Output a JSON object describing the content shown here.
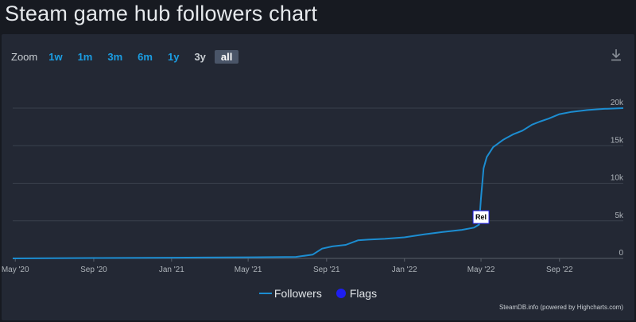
{
  "page": {
    "title": "Steam game hub followers chart"
  },
  "toolbar": {
    "zoom_label": "Zoom",
    "zoom_buttons": [
      "1w",
      "1m",
      "3m",
      "6m",
      "1y",
      "3y",
      "all"
    ],
    "active": "all",
    "download_icon": "download-icon"
  },
  "legend": {
    "followers": "Followers",
    "flags": "Flags"
  },
  "credits": "SteamDB.info (powered by Highcharts.com)",
  "colors": {
    "line": "#1c8dd1",
    "flags": "#1e1ef0",
    "background": "#232834",
    "grid": "#3a404c"
  },
  "chart_data": {
    "type": "line",
    "title": "",
    "xlabel": "",
    "ylabel": "",
    "x_tick_labels": [
      "May '20",
      "Sep '20",
      "Jan '21",
      "May '21",
      "Sep '21",
      "Jan '22",
      "May '22",
      "Sep '22"
    ],
    "y_tick_labels": [
      "0",
      "5k",
      "10k",
      "15k",
      "20k"
    ],
    "ylim": [
      0,
      20000
    ],
    "xlim": [
      "2020-04-27",
      "2022-12-10"
    ],
    "grid": true,
    "legend_position": "bottom-center",
    "series": [
      {
        "name": "Followers",
        "x": [
          "2020-04-27",
          "2020-09-01",
          "2021-01-01",
          "2021-05-01",
          "2021-07-15",
          "2021-08-10",
          "2021-08-25",
          "2021-09-10",
          "2021-10-01",
          "2021-10-20",
          "2021-11-05",
          "2021-12-01",
          "2022-01-01",
          "2022-02-01",
          "2022-03-01",
          "2022-04-01",
          "2022-04-20",
          "2022-04-28",
          "2022-05-01",
          "2022-05-05",
          "2022-05-10",
          "2022-05-20",
          "2022-06-05",
          "2022-06-20",
          "2022-07-05",
          "2022-07-20",
          "2022-08-01",
          "2022-08-15",
          "2022-09-01",
          "2022-09-20",
          "2022-10-15",
          "2022-11-10",
          "2022-12-10"
        ],
        "values": [
          0,
          50,
          100,
          150,
          200,
          500,
          1300,
          1600,
          1800,
          2400,
          2500,
          2600,
          2800,
          3200,
          3500,
          3800,
          4100,
          4500,
          8000,
          12000,
          13500,
          14800,
          15800,
          16500,
          17000,
          17800,
          18200,
          18600,
          19200,
          19500,
          19750,
          19900,
          20000
        ]
      }
    ],
    "flags": [
      {
        "x": "2022-05-01",
        "y": 5500,
        "label": "Rel"
      }
    ]
  }
}
